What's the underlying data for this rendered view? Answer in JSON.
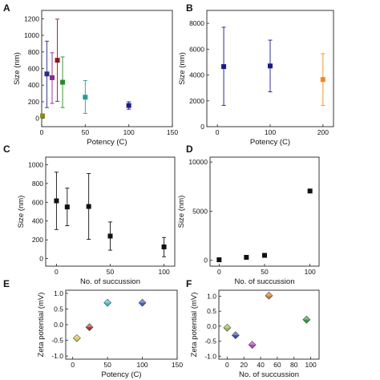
{
  "chart_data": [
    {
      "panel": "A",
      "type": "scatter",
      "xlabel": "Potency (C)",
      "ylabel": "Size (nm)",
      "xlim": [
        0,
        150
      ],
      "ylim": [
        -100,
        1300
      ],
      "xticks": [
        0,
        50,
        100,
        150
      ],
      "yticks": [
        0,
        200,
        400,
        600,
        800,
        1000,
        1200
      ],
      "points": [
        {
          "x": 1,
          "y": 30,
          "err_low": 30,
          "err_high": 30,
          "color": "#8a8a1a"
        },
        {
          "x": 6,
          "y": 535,
          "err_low": 130,
          "err_high": 930,
          "color": "#2a2a8a"
        },
        {
          "x": 12,
          "y": 490,
          "err_low": 180,
          "err_high": 790,
          "color": "#8a2a8a"
        },
        {
          "x": 18,
          "y": 700,
          "err_low": 205,
          "err_high": 1195,
          "color": "#8b1a1a"
        },
        {
          "x": 24,
          "y": 435,
          "err_low": 130,
          "err_high": 740,
          "color": "#2a8a2a"
        },
        {
          "x": 50,
          "y": 255,
          "err_low": 60,
          "err_high": 455,
          "color": "#2a9a9a"
        },
        {
          "x": 100,
          "y": 155,
          "err_low": 110,
          "err_high": 200,
          "color": "#1a1a8a"
        }
      ]
    },
    {
      "panel": "B",
      "type": "scatter",
      "xlabel": "Potency (C)",
      "ylabel": "Size (nm)",
      "xlim": [
        -20,
        220
      ],
      "ylim": [
        0,
        9000
      ],
      "xticks": [
        0,
        100,
        200
      ],
      "yticks": [
        0,
        2000,
        4000,
        6000,
        8000
      ],
      "points": [
        {
          "x": 12,
          "y": 4650,
          "err_low": 1650,
          "err_high": 7700,
          "color": "#1a1a8a"
        },
        {
          "x": 100,
          "y": 4700,
          "err_low": 2700,
          "err_high": 6700,
          "color": "#1a1a8a"
        },
        {
          "x": 200,
          "y": 3650,
          "err_low": 1650,
          "err_high": 5650,
          "color": "#f08a20"
        }
      ]
    },
    {
      "panel": "C",
      "type": "scatter",
      "xlabel": "No. of succussion",
      "ylabel": "Size (nm)",
      "xlim": [
        -10,
        110
      ],
      "ylim": [
        -80,
        1080
      ],
      "xticks": [
        0,
        50,
        100
      ],
      "yticks": [
        0,
        200,
        400,
        600,
        800,
        1000
      ],
      "points": [
        {
          "x": 0,
          "y": 615,
          "err_low": 310,
          "err_high": 920,
          "color": "#111111"
        },
        {
          "x": 10,
          "y": 550,
          "err_low": 350,
          "err_high": 750,
          "color": "#111111"
        },
        {
          "x": 30,
          "y": 555,
          "err_low": 205,
          "err_high": 905,
          "color": "#111111"
        },
        {
          "x": 50,
          "y": 240,
          "err_low": 90,
          "err_high": 390,
          "color": "#111111"
        },
        {
          "x": 100,
          "y": 125,
          "err_low": 20,
          "err_high": 225,
          "color": "#111111"
        }
      ]
    },
    {
      "panel": "D",
      "type": "scatter",
      "xlabel": "No. of succussion",
      "ylabel": "Size (nm)",
      "xlim": [
        -10,
        110
      ],
      "ylim": [
        -600,
        10500
      ],
      "xticks": [
        0,
        50,
        100
      ],
      "yticks": [
        0,
        5000,
        10000
      ],
      "points": [
        {
          "x": 0,
          "y": 50,
          "color": "#111111"
        },
        {
          "x": 30,
          "y": 300,
          "color": "#111111"
        },
        {
          "x": 50,
          "y": 500,
          "color": "#111111"
        },
        {
          "x": 100,
          "y": 7050,
          "color": "#111111"
        }
      ]
    },
    {
      "panel": "E",
      "type": "scatter",
      "xlabel": "Potency (C)",
      "ylabel": "Zeta potential (mV)",
      "xlim": [
        -10,
        150
      ],
      "ylim": [
        -1.1,
        1.1
      ],
      "xticks": [
        0,
        50,
        100,
        150
      ],
      "yticks": [
        -1.0,
        -0.5,
        0.0,
        0.5,
        1.0
      ],
      "points": [
        {
          "x": 6,
          "y": -0.43,
          "color": "#d8c850"
        },
        {
          "x": 24,
          "y": -0.08,
          "color": "#b03030"
        },
        {
          "x": 50,
          "y": 0.7,
          "color": "#40c0d0"
        },
        {
          "x": 100,
          "y": 0.7,
          "color": "#4060c0"
        }
      ]
    },
    {
      "panel": "F",
      "type": "scatter",
      "xlabel": "No. of succussion",
      "ylabel": "Zeta potential (mV)",
      "xlim": [
        -10,
        110
      ],
      "ylim": [
        -1.1,
        1.2
      ],
      "xticks": [
        0,
        20,
        40,
        60,
        80,
        100
      ],
      "yticks": [
        -1.0,
        -0.5,
        0.0,
        0.5,
        1.0
      ],
      "points": [
        {
          "x": 0,
          "y": -0.05,
          "color": "#a0c040"
        },
        {
          "x": 10,
          "y": -0.3,
          "color": "#3050b0"
        },
        {
          "x": 30,
          "y": -0.62,
          "color": "#b040c0"
        },
        {
          "x": 50,
          "y": 1.02,
          "color": "#d08030"
        },
        {
          "x": 95,
          "y": 0.22,
          "color": "#30a040"
        }
      ]
    }
  ]
}
